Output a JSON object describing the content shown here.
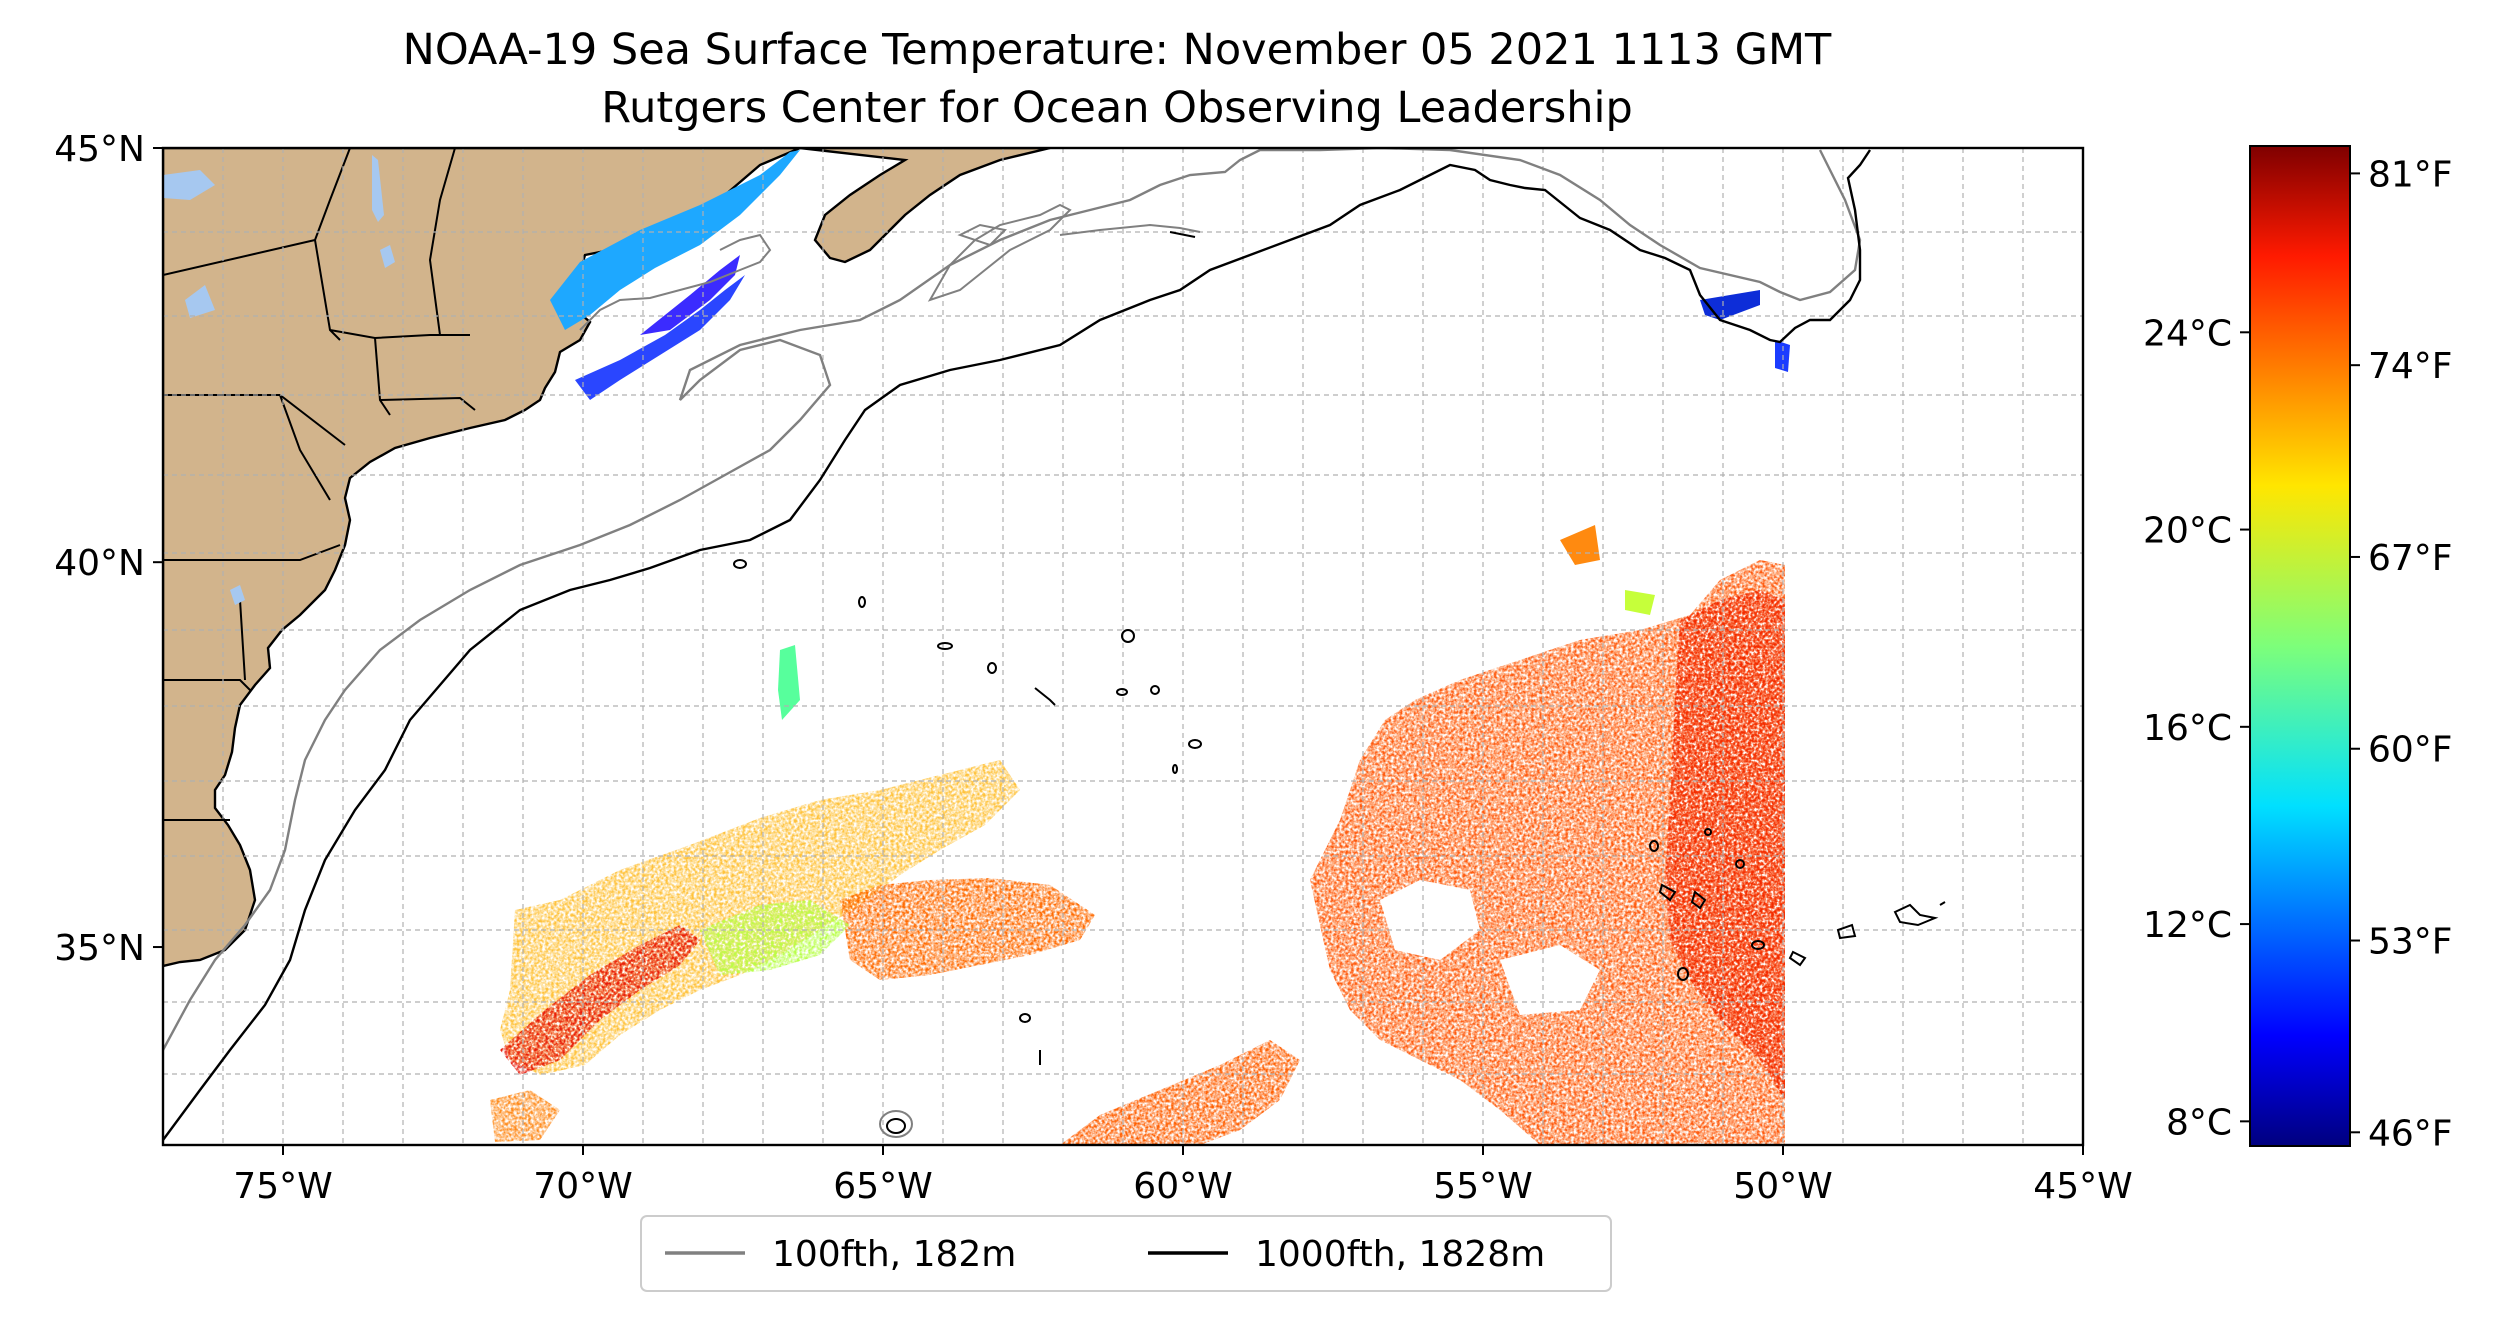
{
  "title": {
    "line1": "NOAA-19 Sea Surface Temperature: November 05 2021 1113 GMT",
    "line2": "Rutgers Center for Ocean Observing Leadership"
  },
  "map": {
    "extent": {
      "lon_min": -77,
      "lon_max": -45,
      "lat_min": 32.3,
      "lat_max": 45
    },
    "lon_ticks": [
      {
        "value": -75,
        "label": "75°W"
      },
      {
        "value": -70,
        "label": "70°W"
      },
      {
        "value": -65,
        "label": "65°W"
      },
      {
        "value": -60,
        "label": "60°W"
      },
      {
        "value": -55,
        "label": "55°W"
      },
      {
        "value": -50,
        "label": "50°W"
      },
      {
        "value": -45,
        "label": "45°W"
      }
    ],
    "lat_ticks": [
      {
        "value": 45,
        "label": "45°N"
      },
      {
        "value": 40,
        "label": "40°N"
      },
      {
        "value": 35,
        "label": "35°N"
      }
    ],
    "minor_gridlines": "every 1°",
    "colors": {
      "land": "#d2b48c",
      "lakes": "#a6c8f0",
      "grid": "#b0b0b0",
      "isobath_100fth": "#808080",
      "isobath_1000fth": "#000000"
    }
  },
  "legend": {
    "items": [
      {
        "label": "100fth, 182m",
        "color": "#808080"
      },
      {
        "label": "1000fth, 1828m",
        "color": "#000000"
      }
    ]
  },
  "colorbar": {
    "range_f": [
      45.5,
      82
    ],
    "fahrenheit_ticks": [
      {
        "value": 81,
        "label": "81°F"
      },
      {
        "value": 74,
        "label": "74°F"
      },
      {
        "value": 67,
        "label": "67°F"
      },
      {
        "value": 60,
        "label": "60°F"
      },
      {
        "value": 53,
        "label": "53°F"
      },
      {
        "value": 46,
        "label": "46°F"
      }
    ],
    "celsius_ticks": [
      {
        "value": 24,
        "label": "24°C"
      },
      {
        "value": 20,
        "label": "20°C"
      },
      {
        "value": 16,
        "label": "16°C"
      },
      {
        "value": 12,
        "label": "12°C"
      },
      {
        "value": 8,
        "label": "8°C"
      }
    ],
    "colormap": "jet"
  }
}
